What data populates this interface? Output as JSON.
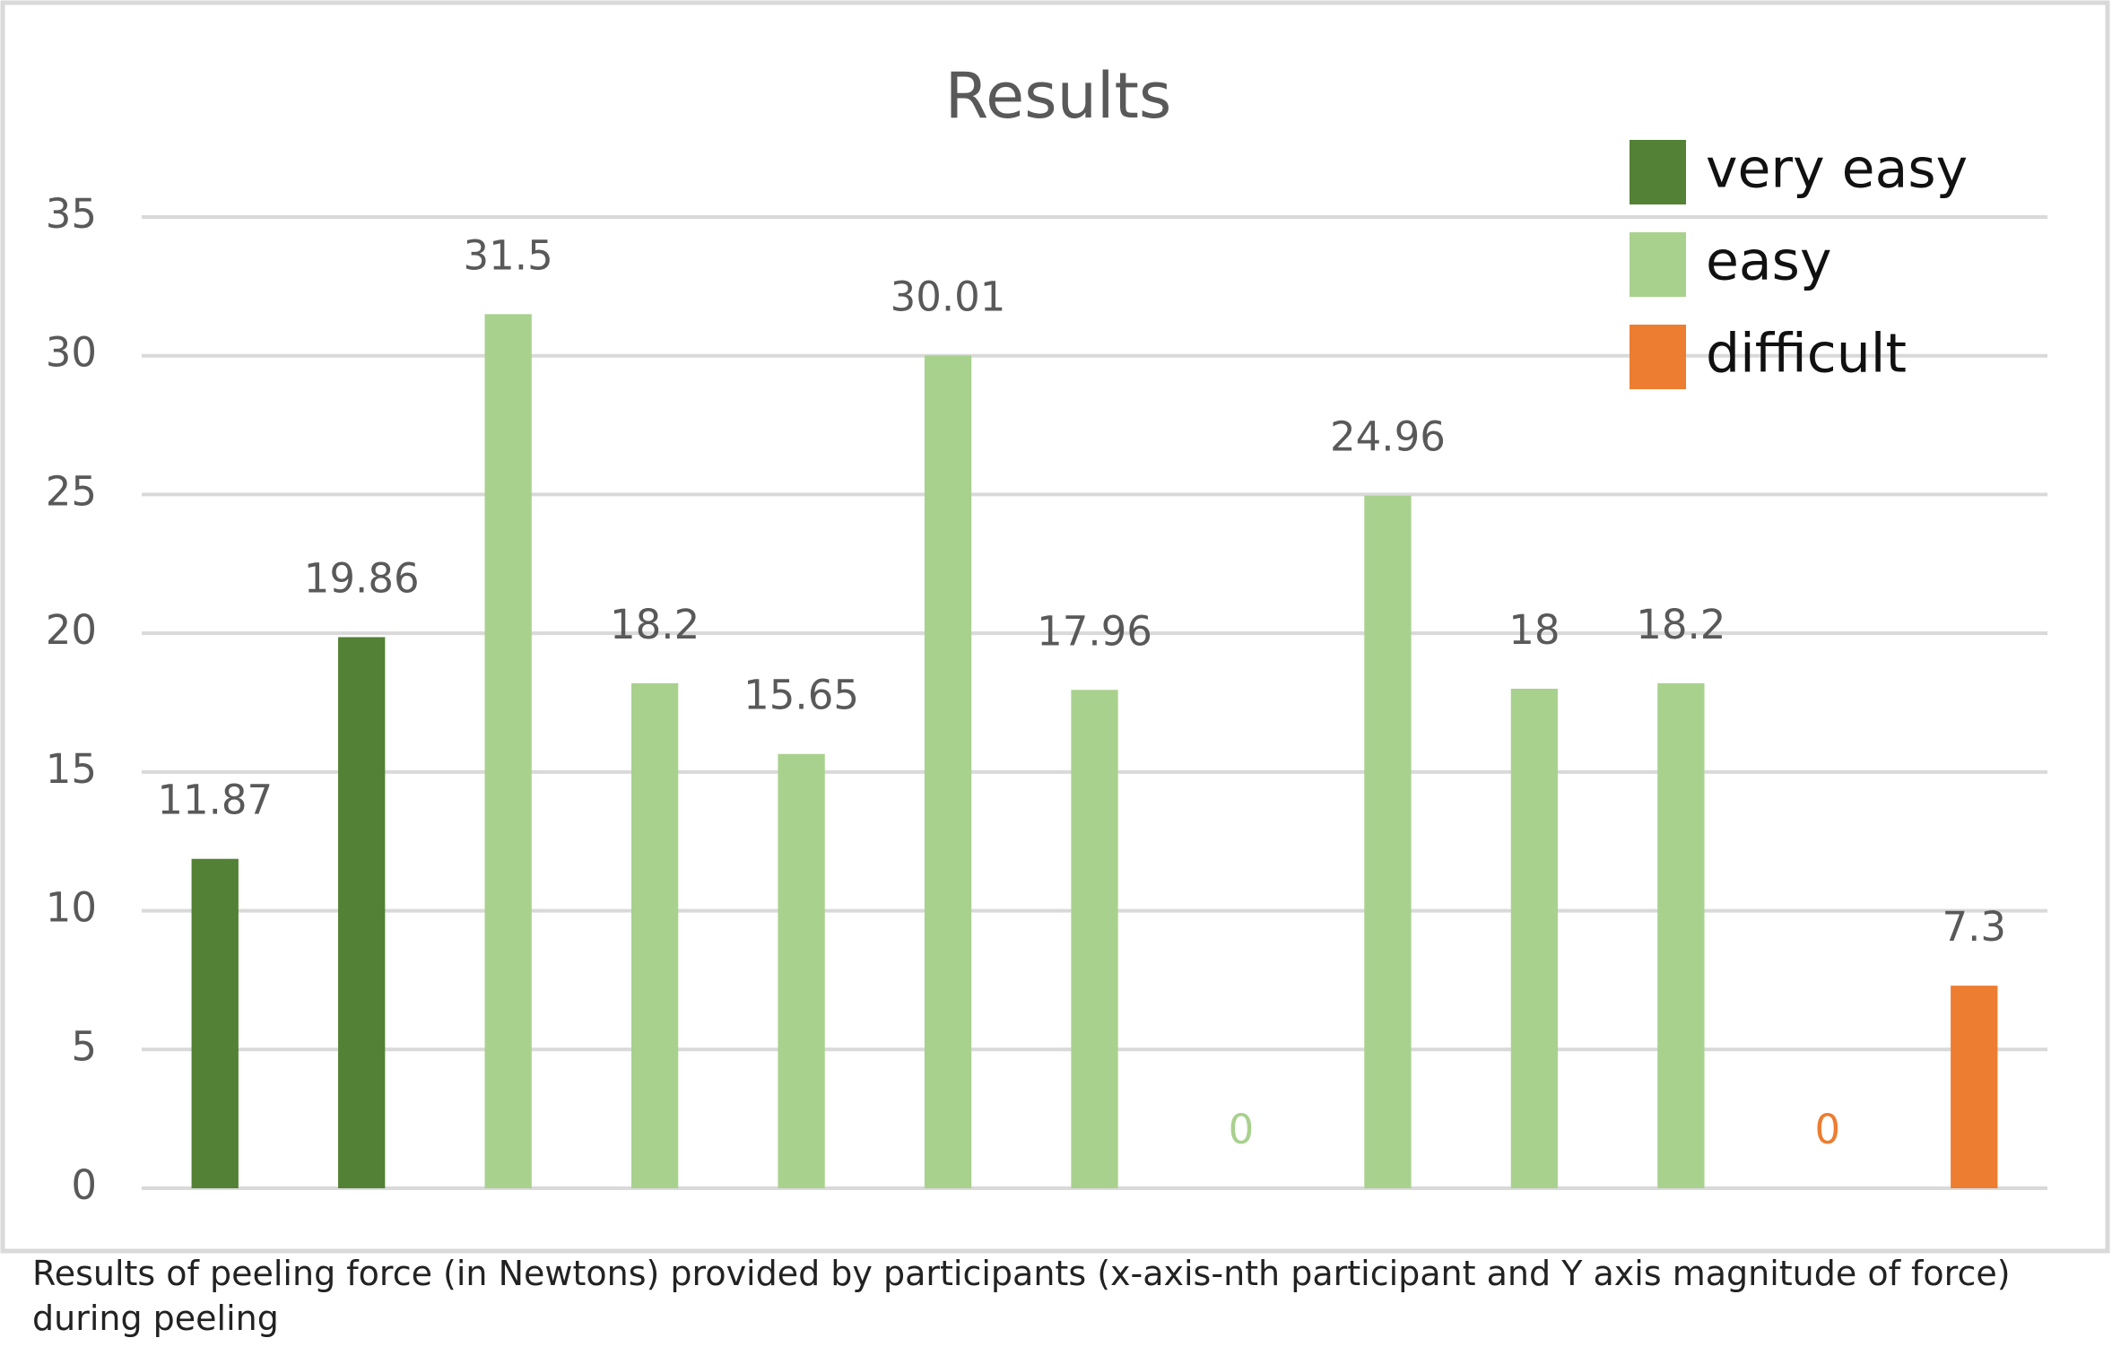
{
  "chart_data": {
    "type": "bar",
    "title": "Results",
    "categories": [
      null,
      null,
      null,
      null,
      null,
      null,
      null,
      null,
      null,
      null,
      null,
      null,
      null
    ],
    "series": [
      {
        "name": "very easy",
        "color": "#538135",
        "values": [
          11.87,
          19.86,
          null,
          null,
          null,
          null,
          null,
          null,
          null,
          null,
          null,
          null,
          null
        ]
      },
      {
        "name": "easy",
        "color": "#a9d18e",
        "values": [
          null,
          null,
          31.5,
          18.2,
          15.65,
          30.01,
          17.96,
          0,
          24.96,
          18,
          18.2,
          null,
          null
        ]
      },
      {
        "name": "difficult",
        "color": "#ed7d31",
        "values": [
          null,
          null,
          null,
          null,
          null,
          null,
          null,
          null,
          null,
          null,
          null,
          0,
          7.3
        ]
      }
    ],
    "ylim": [
      0,
      35
    ],
    "yticks": [
      0,
      5,
      10,
      15,
      20,
      25,
      30,
      35
    ],
    "grid": true,
    "legend": "top-right",
    "caption": "Results of peeling force (in Newtons) provided by participants (x-axis-nth participant and Y axis magnitude of force) during peeling"
  }
}
